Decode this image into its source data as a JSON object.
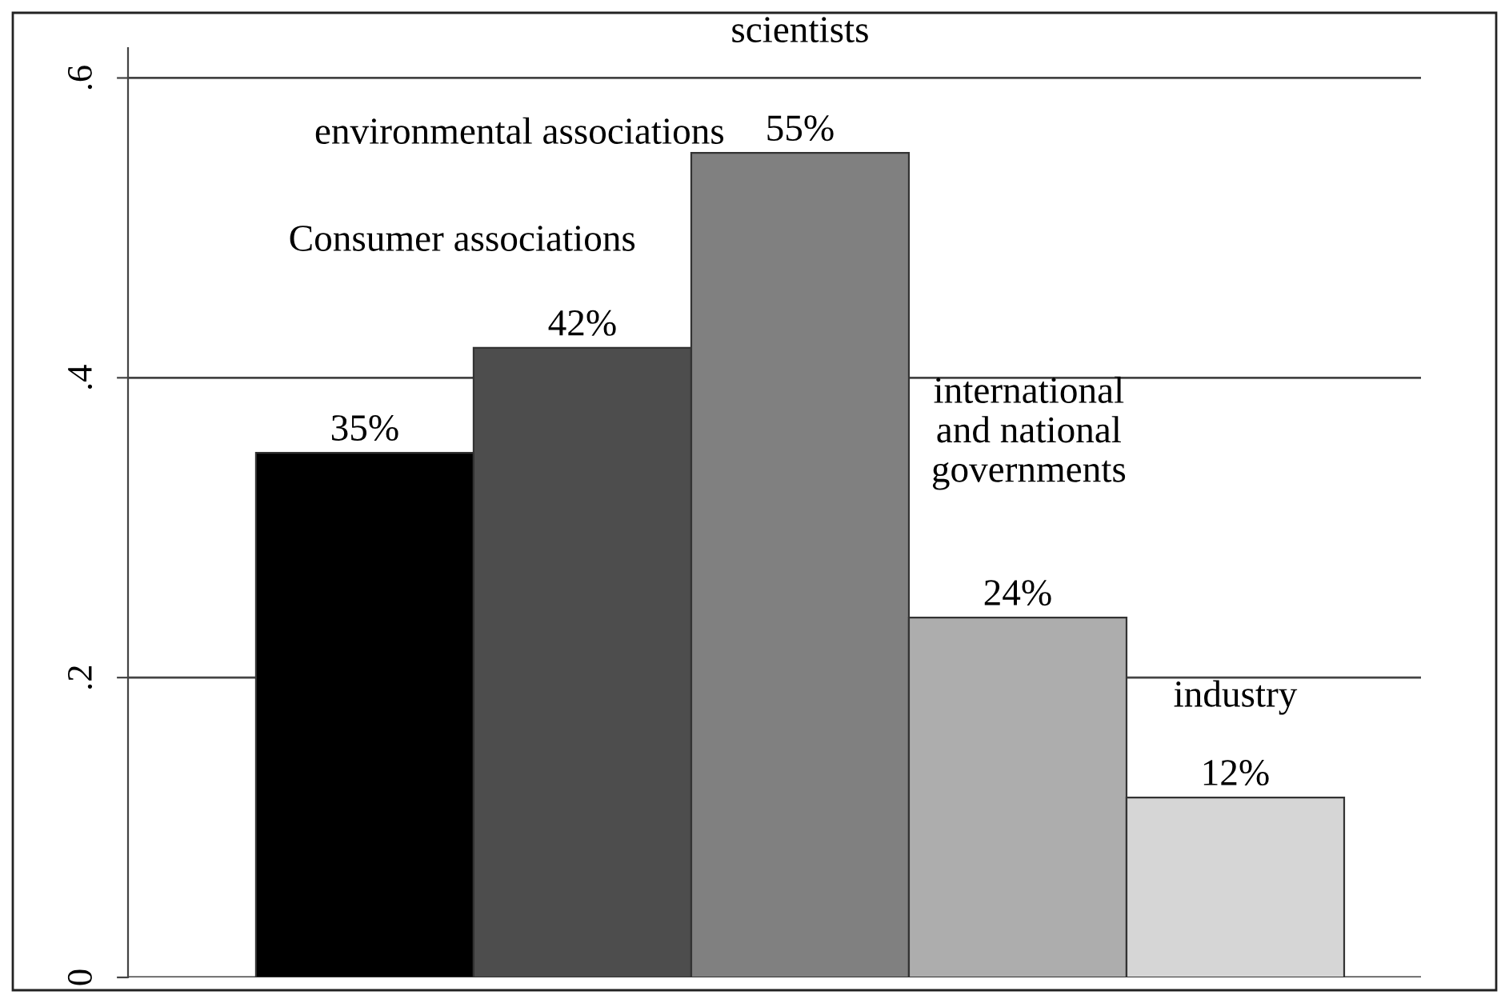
{
  "chart_data": {
    "type": "bar",
    "categories": [
      null,
      null,
      null,
      null,
      null
    ],
    "values": [
      0.35,
      0.42,
      0.55,
      0.24,
      0.12
    ],
    "colors": [
      "#000000",
      "#4d4d4d",
      "#808080",
      "#adadad",
      "#d6d6d6"
    ],
    "value_labels": [
      "35%",
      "42%",
      "55%",
      "24%",
      "12%"
    ],
    "annotations": [
      "Consumer associations",
      "environmental associations",
      "scientists",
      "international\nand national\ngovernments",
      "industry"
    ],
    "ylim": [
      0,
      0.62
    ],
    "yticks": [
      {
        "value": 0,
        "label": "0"
      },
      {
        "value": 0.2,
        "label": ".2"
      },
      {
        "value": 0.4,
        "label": ".4"
      },
      {
        "value": 0.6,
        "label": ".6"
      }
    ],
    "grid": "y",
    "tick_labels": "y"
  }
}
